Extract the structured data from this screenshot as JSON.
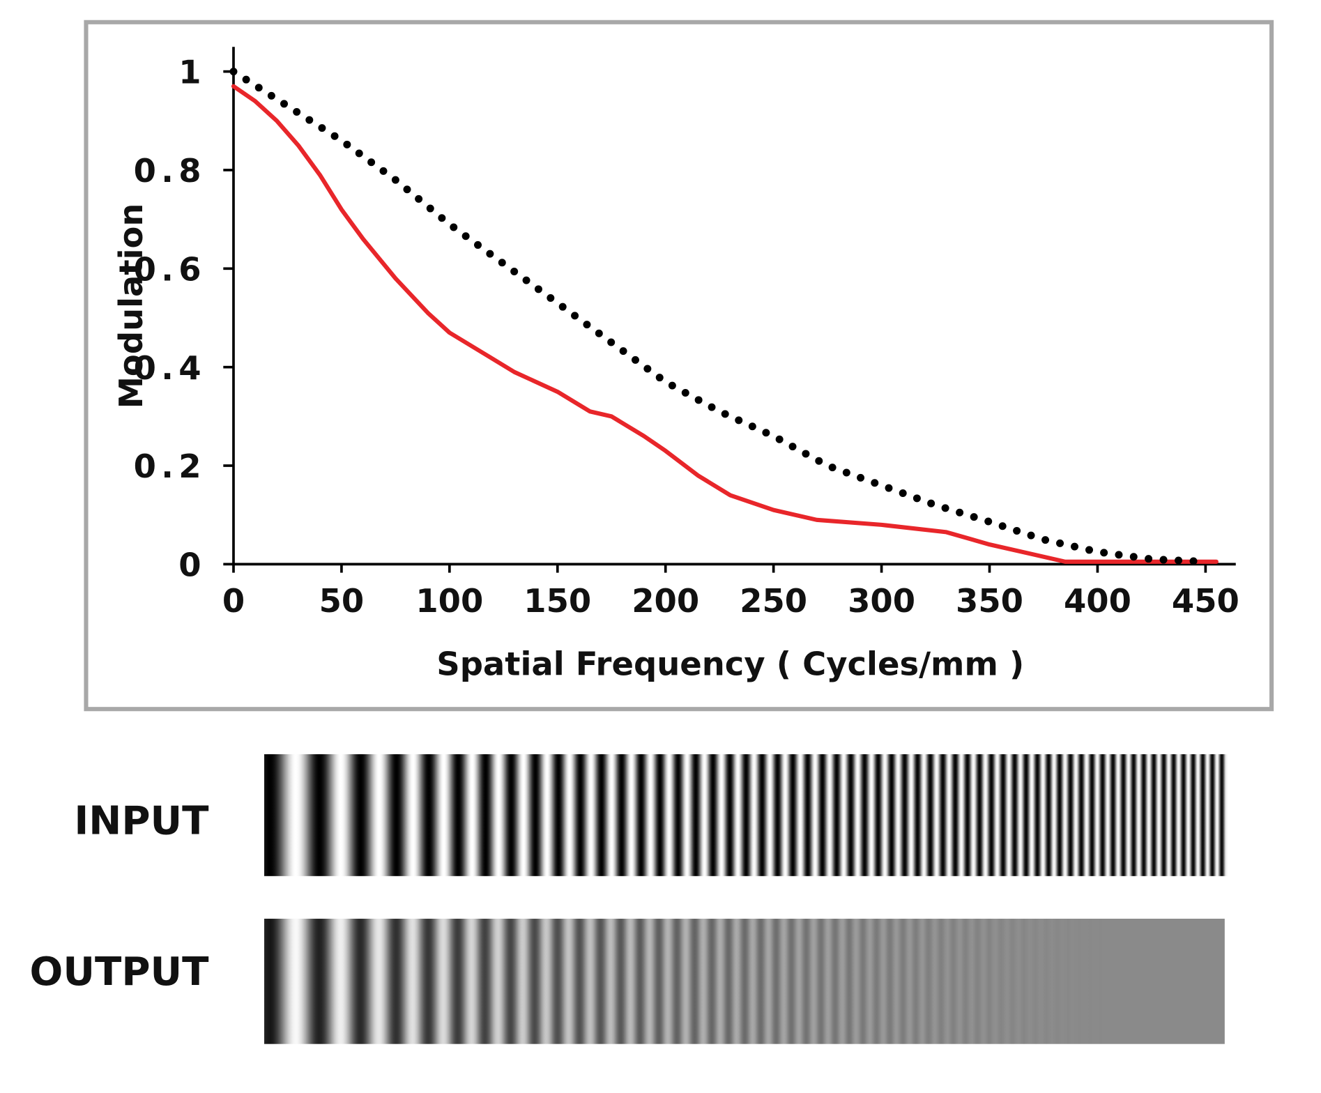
{
  "chart_data": {
    "type": "line",
    "xlabel": "Spatial Frequency ( Cycles/mm )",
    "ylabel": "Modulation",
    "xlim": [
      0,
      464
    ],
    "ylim": [
      0,
      1.05
    ],
    "xticks": [
      0,
      50,
      100,
      150,
      200,
      250,
      300,
      350,
      400,
      450
    ],
    "yticks": [
      0,
      0.2,
      0.4,
      0.6,
      0.8,
      1
    ],
    "series": [
      {
        "color": "#e8262a",
        "style": "solid",
        "x": [
          0,
          10,
          20,
          30,
          40,
          50,
          60,
          75,
          90,
          100,
          115,
          130,
          150,
          165,
          175,
          190,
          200,
          215,
          230,
          250,
          270,
          300,
          330,
          350,
          370,
          385,
          400,
          450,
          455
        ],
        "values": [
          0.97,
          0.94,
          0.9,
          0.85,
          0.79,
          0.72,
          0.66,
          0.58,
          0.51,
          0.47,
          0.43,
          0.39,
          0.35,
          0.31,
          0.3,
          0.26,
          0.23,
          0.18,
          0.14,
          0.11,
          0.09,
          0.08,
          0.065,
          0.04,
          0.02,
          0.005,
          0.005,
          0.005,
          0.005
        ]
      },
      {
        "color": "#000000",
        "style": "dotted",
        "x": [
          0,
          25,
          50,
          75,
          100,
          125,
          150,
          175,
          200,
          225,
          250,
          275,
          300,
          325,
          350,
          375,
          400,
          425,
          450
        ],
        "values": [
          1,
          0.93,
          0.86,
          0.78,
          0.69,
          0.61,
          0.53,
          0.45,
          0.37,
          0.31,
          0.26,
          0.2,
          0.16,
          0.12,
          0.086,
          0.05,
          0.025,
          0.01,
          0.005
        ]
      }
    ]
  },
  "grating": {
    "input_label": "INPUT",
    "output_label": "OUTPUT"
  }
}
